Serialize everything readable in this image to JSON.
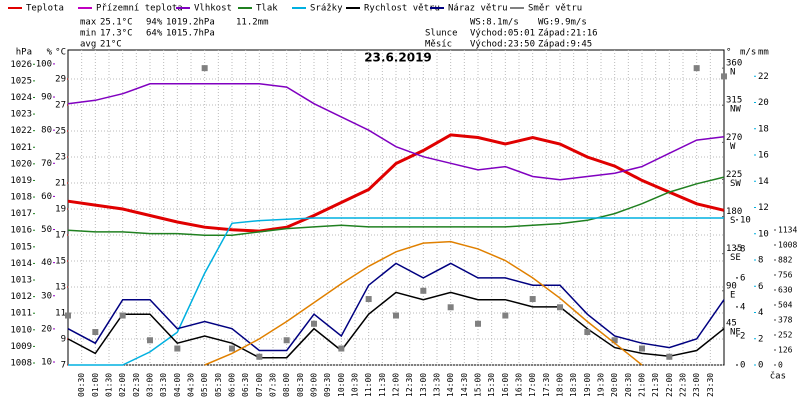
{
  "chart_data": {
    "type": "line",
    "title": "23.6.2019",
    "xlabel": "čas",
    "stats": [
      [
        "max",
        "25.1°C",
        "94%",
        "1019.2hPa",
        "11.2mm"
      ],
      [
        "min",
        "17.3°C",
        "64%",
        "1015.7hPa"
      ],
      [
        "avg",
        "21°C"
      ]
    ],
    "info": [
      [
        "WS:8.1m/s",
        "WG:9.9m/s"
      ],
      [
        "Slunce",
        "Východ:05:01",
        "Západ:21:16"
      ],
      [
        "Měsíc",
        "Východ:23:50",
        "Západ:9:45"
      ]
    ],
    "grid": true,
    "x": [
      0,
      1,
      2,
      3,
      4,
      5,
      6,
      7,
      8,
      9,
      10,
      11,
      12,
      13,
      14,
      15,
      16,
      17,
      18,
      19,
      20,
      21,
      22,
      23,
      24
    ],
    "xlim": [
      0,
      24
    ],
    "xticks": [
      {
        "value": 0.5,
        "label": "00:30"
      },
      {
        "value": 1,
        "label": "01:00"
      },
      {
        "value": 1.5,
        "label": "01:30"
      },
      {
        "value": 2,
        "label": "02:00"
      },
      {
        "value": 2.5,
        "label": "02:30"
      },
      {
        "value": 3,
        "label": "03:00"
      },
      {
        "value": 3.5,
        "label": "03:30"
      },
      {
        "value": 4,
        "label": "04:00"
      },
      {
        "value": 4.5,
        "label": "04:30"
      },
      {
        "value": 5,
        "label": "05:00"
      },
      {
        "value": 5.5,
        "label": "05:30"
      },
      {
        "value": 6,
        "label": "06:00"
      },
      {
        "value": 6.5,
        "label": "06:30"
      },
      {
        "value": 7,
        "label": "07:00"
      },
      {
        "value": 7.5,
        "label": "07:30"
      },
      {
        "value": 8,
        "label": "08:00"
      },
      {
        "value": 8.5,
        "label": "08:30"
      },
      {
        "value": 9,
        "label": "09:00"
      },
      {
        "value": 9.5,
        "label": "09:30"
      },
      {
        "value": 10,
        "label": "10:00"
      },
      {
        "value": 10.5,
        "label": "10:30"
      },
      {
        "value": 11,
        "label": "11:00"
      },
      {
        "value": 11.5,
        "label": "11:30"
      },
      {
        "value": 12,
        "label": "12:00"
      },
      {
        "value": 12.5,
        "label": "12:30"
      },
      {
        "value": 13,
        "label": "13:00"
      },
      {
        "value": 13.5,
        "label": "13:30"
      },
      {
        "value": 14,
        "label": "14:00"
      },
      {
        "value": 14.5,
        "label": "14:30"
      },
      {
        "value": 15,
        "label": "15:00"
      },
      {
        "value": 15.5,
        "label": "15:30"
      },
      {
        "value": 16,
        "label": "16:00"
      },
      {
        "value": 16.5,
        "label": "16:30"
      },
      {
        "value": 17,
        "label": "17:00"
      },
      {
        "value": 17.5,
        "label": "17:30"
      },
      {
        "value": 18,
        "label": "18:00"
      },
      {
        "value": 18.5,
        "label": "18:30"
      },
      {
        "value": 19,
        "label": "19:00"
      },
      {
        "value": 19.5,
        "label": "19:30"
      },
      {
        "value": 20,
        "label": "20:00"
      },
      {
        "value": 20.5,
        "label": "20:30"
      },
      {
        "value": 21,
        "label": "21:00"
      },
      {
        "value": 21.5,
        "label": "21:30"
      },
      {
        "value": 22,
        "label": "22:00"
      },
      {
        "value": 22.5,
        "label": "22:30"
      },
      {
        "value": 23,
        "label": "23:00"
      },
      {
        "value": 23.5,
        "label": "23:30"
      }
    ],
    "axes": {
      "hpa": {
        "label": "hPa",
        "color": "#208020",
        "lim": [
          1007.88,
          1026.86
        ],
        "ticks": [
          1008,
          1009,
          1010,
          1011,
          1012,
          1013,
          1014,
          1015,
          1016,
          1017,
          1018,
          1019,
          1020,
          1021,
          1022,
          1023,
          1024,
          1025,
          1026
        ]
      },
      "pct": {
        "label": "%",
        "color": "#9000c0",
        "lim": [
          9.1,
          104.2
        ],
        "ticks": [
          10,
          20,
          30,
          40,
          50,
          60,
          70,
          80,
          90,
          100
        ]
      },
      "c": {
        "label": "°C",
        "color": "#e00000",
        "lim": [
          7,
          31.23
        ],
        "ticks": [
          7,
          9,
          11,
          13,
          15,
          17,
          19,
          21,
          23,
          25,
          27,
          29
        ]
      },
      "deg": {
        "label": "°",
        "color": "#606060",
        "lim": [
          0,
          382
        ],
        "ticks": [
          {
            "value": 45,
            "label": "45",
            "dir": "NE"
          },
          {
            "value": 90,
            "label": "90",
            "dir": "E"
          },
          {
            "value": 135,
            "label": "135",
            "dir": "SE"
          },
          {
            "value": 180,
            "label": "180",
            "dir": "S"
          },
          {
            "value": 225,
            "label": "225",
            "dir": "SW"
          },
          {
            "value": 270,
            "label": "270",
            "dir": "W"
          },
          {
            "value": 315,
            "label": "315",
            "dir": "NW"
          },
          {
            "value": 360,
            "label": "360",
            "dir": "N"
          }
        ]
      },
      "ms": {
        "label": "m/s",
        "color": "#000000",
        "lim": [
          0,
          21.7
        ],
        "ticks": [
          0,
          2,
          4,
          6,
          8,
          10
        ]
      },
      "mm": {
        "label": "mm",
        "color": "#00b0e0",
        "lim": [
          0,
          24
        ],
        "ticks": [
          0,
          2,
          4,
          6,
          8,
          10,
          12,
          14,
          16,
          18,
          20,
          22
        ]
      },
      "rad": {
        "color": "#404040",
        "lim": [
          0,
          2646
        ],
        "ticks": [
          0,
          126,
          252,
          378,
          504,
          630,
          756,
          882,
          1008,
          1134
        ]
      }
    },
    "series": [
      {
        "name": "Teplota",
        "color": "#e00000",
        "axis": "c",
        "values": [
          19.6,
          19.3,
          19.0,
          18.5,
          18.0,
          17.6,
          17.4,
          17.3,
          17.6,
          18.5,
          19.5,
          20.5,
          22.5,
          23.5,
          24.7,
          24.5,
          24.0,
          24.5,
          24.0,
          23.0,
          22.3,
          21.2,
          20.3,
          19.4,
          18.9
        ]
      },
      {
        "name": "Přízemní teplota",
        "color": "#c000c0"
      },
      {
        "name": "Vlhkost",
        "color": "#8000c0",
        "axis": "pct",
        "values": [
          88,
          89,
          91,
          94,
          94,
          94,
          94,
          94,
          93,
          88,
          84,
          80,
          75,
          72,
          70,
          68,
          69,
          66,
          65,
          66,
          67,
          69,
          73,
          77,
          78
        ]
      },
      {
        "name": "Tlak",
        "color": "#208020",
        "axis": "hpa",
        "values": [
          1016.0,
          1015.9,
          1015.9,
          1015.8,
          1015.8,
          1015.7,
          1015.7,
          1015.9,
          1016.1,
          1016.2,
          1016.3,
          1016.2,
          1016.2,
          1016.2,
          1016.2,
          1016.2,
          1016.2,
          1016.3,
          1016.4,
          1016.6,
          1017.0,
          1017.6,
          1018.3,
          1018.8,
          1019.2
        ]
      },
      {
        "name": "Srážky",
        "color": "#00b0e0",
        "axis": "mm",
        "values": [
          0,
          0,
          0,
          1.0,
          2.5,
          7.0,
          10.8,
          11.0,
          11.1,
          11.2,
          11.2,
          11.2,
          11.2,
          11.2,
          11.2,
          11.2,
          11.2,
          11.2,
          11.2,
          11.2,
          11.2,
          11.2,
          11.2,
          11.2,
          11.2
        ]
      },
      {
        "name": "Rychlost větru",
        "color": "#000000",
        "axis": "ms",
        "values": [
          1.8,
          0.8,
          3.5,
          3.5,
          1.5,
          2.0,
          1.5,
          0.5,
          0.5,
          2.5,
          1.0,
          3.5,
          5.0,
          4.5,
          5.0,
          4.5,
          4.5,
          4.0,
          4.0,
          2.5,
          1.2,
          0.8,
          0.6,
          1.0,
          2.5
        ]
      },
      {
        "name": "Náraz větru",
        "color": "#000080",
        "axis": "ms",
        "values": [
          2.5,
          1.5,
          4.5,
          4.5,
          2.5,
          3.0,
          2.5,
          1.0,
          1.0,
          3.5,
          2.0,
          5.5,
          7.0,
          6.0,
          7.0,
          6.0,
          6.0,
          5.5,
          5.5,
          3.5,
          2.0,
          1.5,
          1.2,
          1.8,
          4.5
        ]
      },
      {
        "name": "Směr větru",
        "color": "#808080",
        "axis": "deg",
        "points": true,
        "values": [
          60,
          40,
          60,
          30,
          20,
          360,
          20,
          10,
          30,
          50,
          20,
          80,
          60,
          90,
          70,
          50,
          60,
          80,
          70,
          40,
          30,
          20,
          10,
          360,
          350
        ]
      },
      {
        "color": "#e08000",
        "axis": "ms",
        "values": [
          null,
          null,
          null,
          null,
          null,
          0,
          0.8,
          1.8,
          3.0,
          4.3,
          5.6,
          6.8,
          7.8,
          8.4,
          8.5,
          8.0,
          7.2,
          6.0,
          4.6,
          3.0,
          1.5,
          0,
          null,
          null,
          null
        ]
      }
    ]
  }
}
